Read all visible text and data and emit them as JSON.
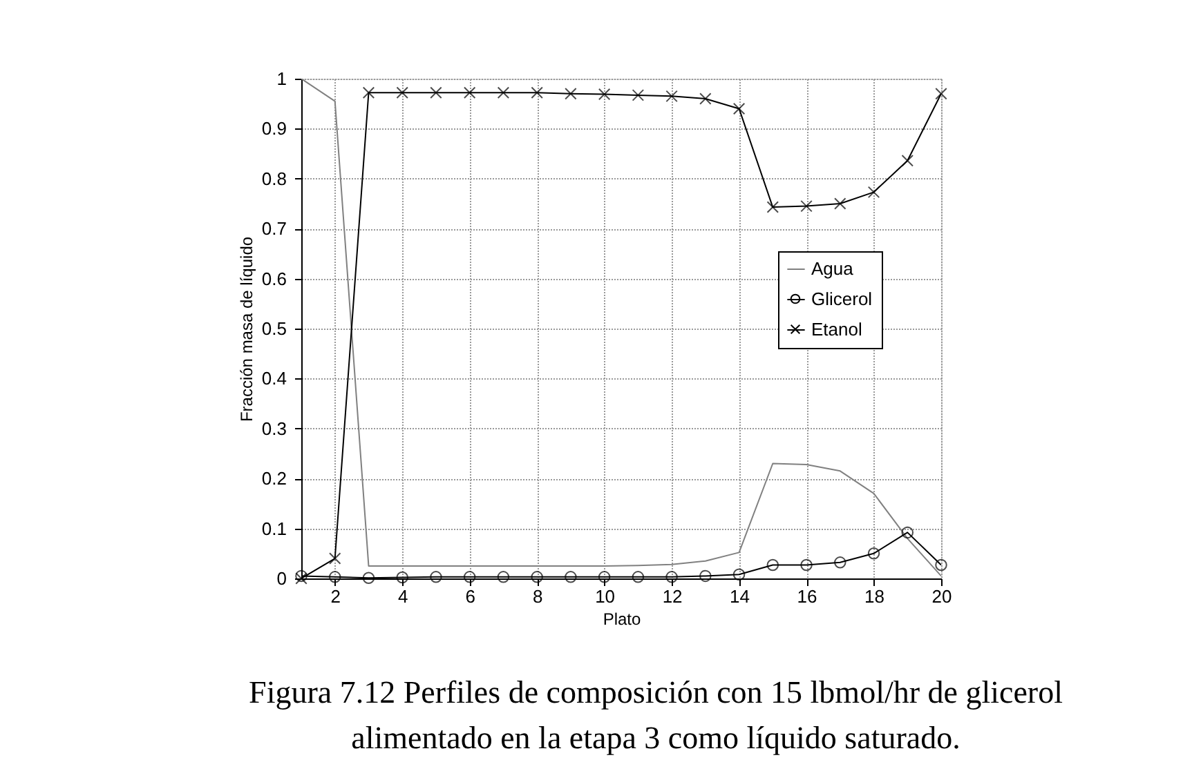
{
  "chart_data": {
    "type": "line",
    "xlabel": "Plato",
    "ylabel": "Fracción masa de líquido",
    "x": [
      1,
      2,
      3,
      4,
      5,
      6,
      7,
      8,
      9,
      10,
      11,
      12,
      13,
      14,
      15,
      16,
      17,
      18,
      19,
      20
    ],
    "series": [
      {
        "name": "Agua",
        "color": "#808080",
        "marker": "none",
        "values": [
          1.0,
          0.955,
          0.025,
          0.025,
          0.025,
          0.025,
          0.025,
          0.025,
          0.025,
          0.025,
          0.026,
          0.028,
          0.035,
          0.052,
          0.23,
          0.228,
          0.215,
          0.17,
          0.08,
          0.005
        ]
      },
      {
        "name": "Glicerol",
        "color": "#000000",
        "marker": "circle",
        "values": [
          0.005,
          0.003,
          0.001,
          0.002,
          0.003,
          0.003,
          0.003,
          0.003,
          0.003,
          0.003,
          0.003,
          0.003,
          0.005,
          0.008,
          0.027,
          0.027,
          0.032,
          0.05,
          0.092,
          0.027
        ]
      },
      {
        "name": "Etanol",
        "color": "#000000",
        "marker": "cross",
        "values": [
          0.0,
          0.04,
          0.972,
          0.972,
          0.972,
          0.972,
          0.972,
          0.972,
          0.97,
          0.969,
          0.967,
          0.965,
          0.96,
          0.94,
          0.743,
          0.745,
          0.75,
          0.773,
          0.836,
          0.97
        ]
      }
    ],
    "xlim": [
      1,
      20
    ],
    "xticks": [
      2,
      4,
      6,
      8,
      10,
      12,
      14,
      16,
      18,
      20
    ],
    "ylim": [
      0,
      1
    ],
    "yticks": [
      0,
      0.1,
      0.2,
      0.3,
      0.4,
      0.5,
      0.6,
      0.7,
      0.8,
      0.9,
      1
    ],
    "grid": true,
    "legend": "right",
    "line_style": "solid",
    "annotations": [
      "Figura 7.12 Perfiles de composición con 15 lbmol/hr de glicerol alimentado en la etapa 3 como líquido saturado."
    ]
  }
}
